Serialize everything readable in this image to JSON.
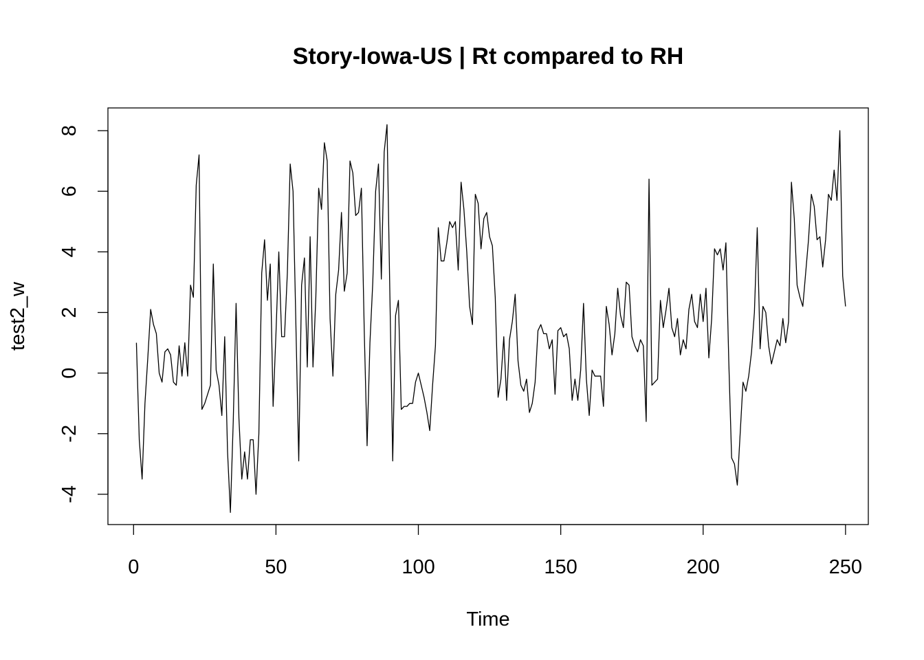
{
  "chart_data": {
    "type": "line",
    "title": "Story-Iowa-US | Rt compared to RH",
    "xlabel": "Time",
    "ylabel": "test2_w",
    "xlim": [
      -9,
      258
    ],
    "ylim": [
      -5,
      8.75
    ],
    "x_ticks": [
      0,
      50,
      100,
      150,
      200,
      250
    ],
    "x_tick_labels": [
      "0",
      "50",
      "100",
      "150",
      "200",
      "250"
    ],
    "y_ticks": [
      -4,
      -2,
      0,
      2,
      4,
      6,
      8
    ],
    "y_tick_labels": [
      "-4",
      "-2",
      "0",
      "2",
      "4",
      "6",
      "8"
    ],
    "grid": false,
    "line_color": "#000000",
    "series": [
      {
        "x_start": 1,
        "x_step": 1,
        "values": [
          1.0,
          -2.2,
          -3.5,
          -1.0,
          0.5,
          2.1,
          1.6,
          1.3,
          0.0,
          -0.3,
          0.7,
          0.8,
          0.6,
          -0.3,
          -0.4,
          0.9,
          -0.1,
          1.0,
          -0.1,
          2.9,
          2.5,
          6.2,
          7.2,
          -1.2,
          -1.0,
          -0.7,
          -0.4,
          3.6,
          0.1,
          -0.4,
          -1.4,
          1.2,
          -2.6,
          -4.6,
          -1.6,
          2.3,
          -1.5,
          -3.5,
          -2.6,
          -3.5,
          -2.2,
          -2.2,
          -4.0,
          -2.0,
          3.3,
          4.4,
          2.4,
          3.6,
          -1.1,
          1.3,
          4.0,
          1.2,
          1.2,
          3.3,
          6.9,
          6.0,
          1.6,
          -2.9,
          2.9,
          3.8,
          0.2,
          4.5,
          0.2,
          2.5,
          6.1,
          5.4,
          7.6,
          7.0,
          1.8,
          -0.1,
          2.6,
          3.4,
          5.3,
          2.7,
          3.3,
          7.0,
          6.6,
          5.2,
          5.3,
          6.1,
          1.4,
          -2.4,
          1.0,
          3.0,
          6.0,
          6.9,
          3.1,
          7.3,
          8.2,
          2.6,
          -2.9,
          1.9,
          2.4,
          -1.2,
          -1.1,
          -1.1,
          -1.0,
          -1.0,
          -0.3,
          0.0,
          -0.4,
          -0.8,
          -1.3,
          -1.9,
          -0.4,
          0.9,
          4.8,
          3.7,
          3.7,
          4.3,
          5.0,
          4.8,
          5.0,
          3.4,
          6.3,
          5.4,
          4.0,
          2.2,
          1.6,
          5.9,
          5.6,
          4.1,
          5.1,
          5.3,
          4.5,
          4.2,
          2.5,
          -0.8,
          -0.2,
          1.2,
          -0.9,
          1.1,
          1.7,
          2.6,
          0.4,
          -0.4,
          -0.6,
          -0.2,
          -1.3,
          -1.0,
          -0.3,
          1.4,
          1.6,
          1.3,
          1.3,
          0.8,
          1.1,
          -0.7,
          1.4,
          1.5,
          1.2,
          1.3,
          0.8,
          -0.9,
          -0.2,
          -0.9,
          0.1,
          2.3,
          -0.2,
          -1.4,
          0.1,
          -0.1,
          -0.1,
          -0.1,
          -1.1,
          2.2,
          1.6,
          0.6,
          1.3,
          2.8,
          1.9,
          1.5,
          3.0,
          2.9,
          1.2,
          0.9,
          0.7,
          1.1,
          0.9,
          -1.6,
          6.4,
          -0.4,
          -0.3,
          -0.2,
          2.4,
          1.5,
          2.1,
          2.8,
          1.5,
          1.2,
          1.8,
          0.6,
          1.1,
          0.8,
          2.1,
          2.6,
          1.7,
          1.5,
          2.6,
          1.7,
          2.8,
          0.5,
          1.8,
          4.1,
          3.9,
          4.1,
          3.4,
          4.3,
          0.4,
          -2.8,
          -3.0,
          -3.7,
          -2.0,
          -0.3,
          -0.6,
          -0.1,
          0.7,
          2.0,
          4.8,
          0.8,
          2.2,
          2.0,
          0.9,
          0.3,
          0.7,
          1.1,
          0.9,
          1.8,
          1.0,
          1.7,
          6.3,
          5.1,
          2.9,
          2.5,
          2.2,
          3.3,
          4.4,
          5.9,
          5.5,
          4.4,
          4.5,
          3.5,
          4.4,
          5.9,
          5.7,
          6.7,
          5.7,
          8.0,
          3.2,
          2.2
        ]
      }
    ]
  }
}
